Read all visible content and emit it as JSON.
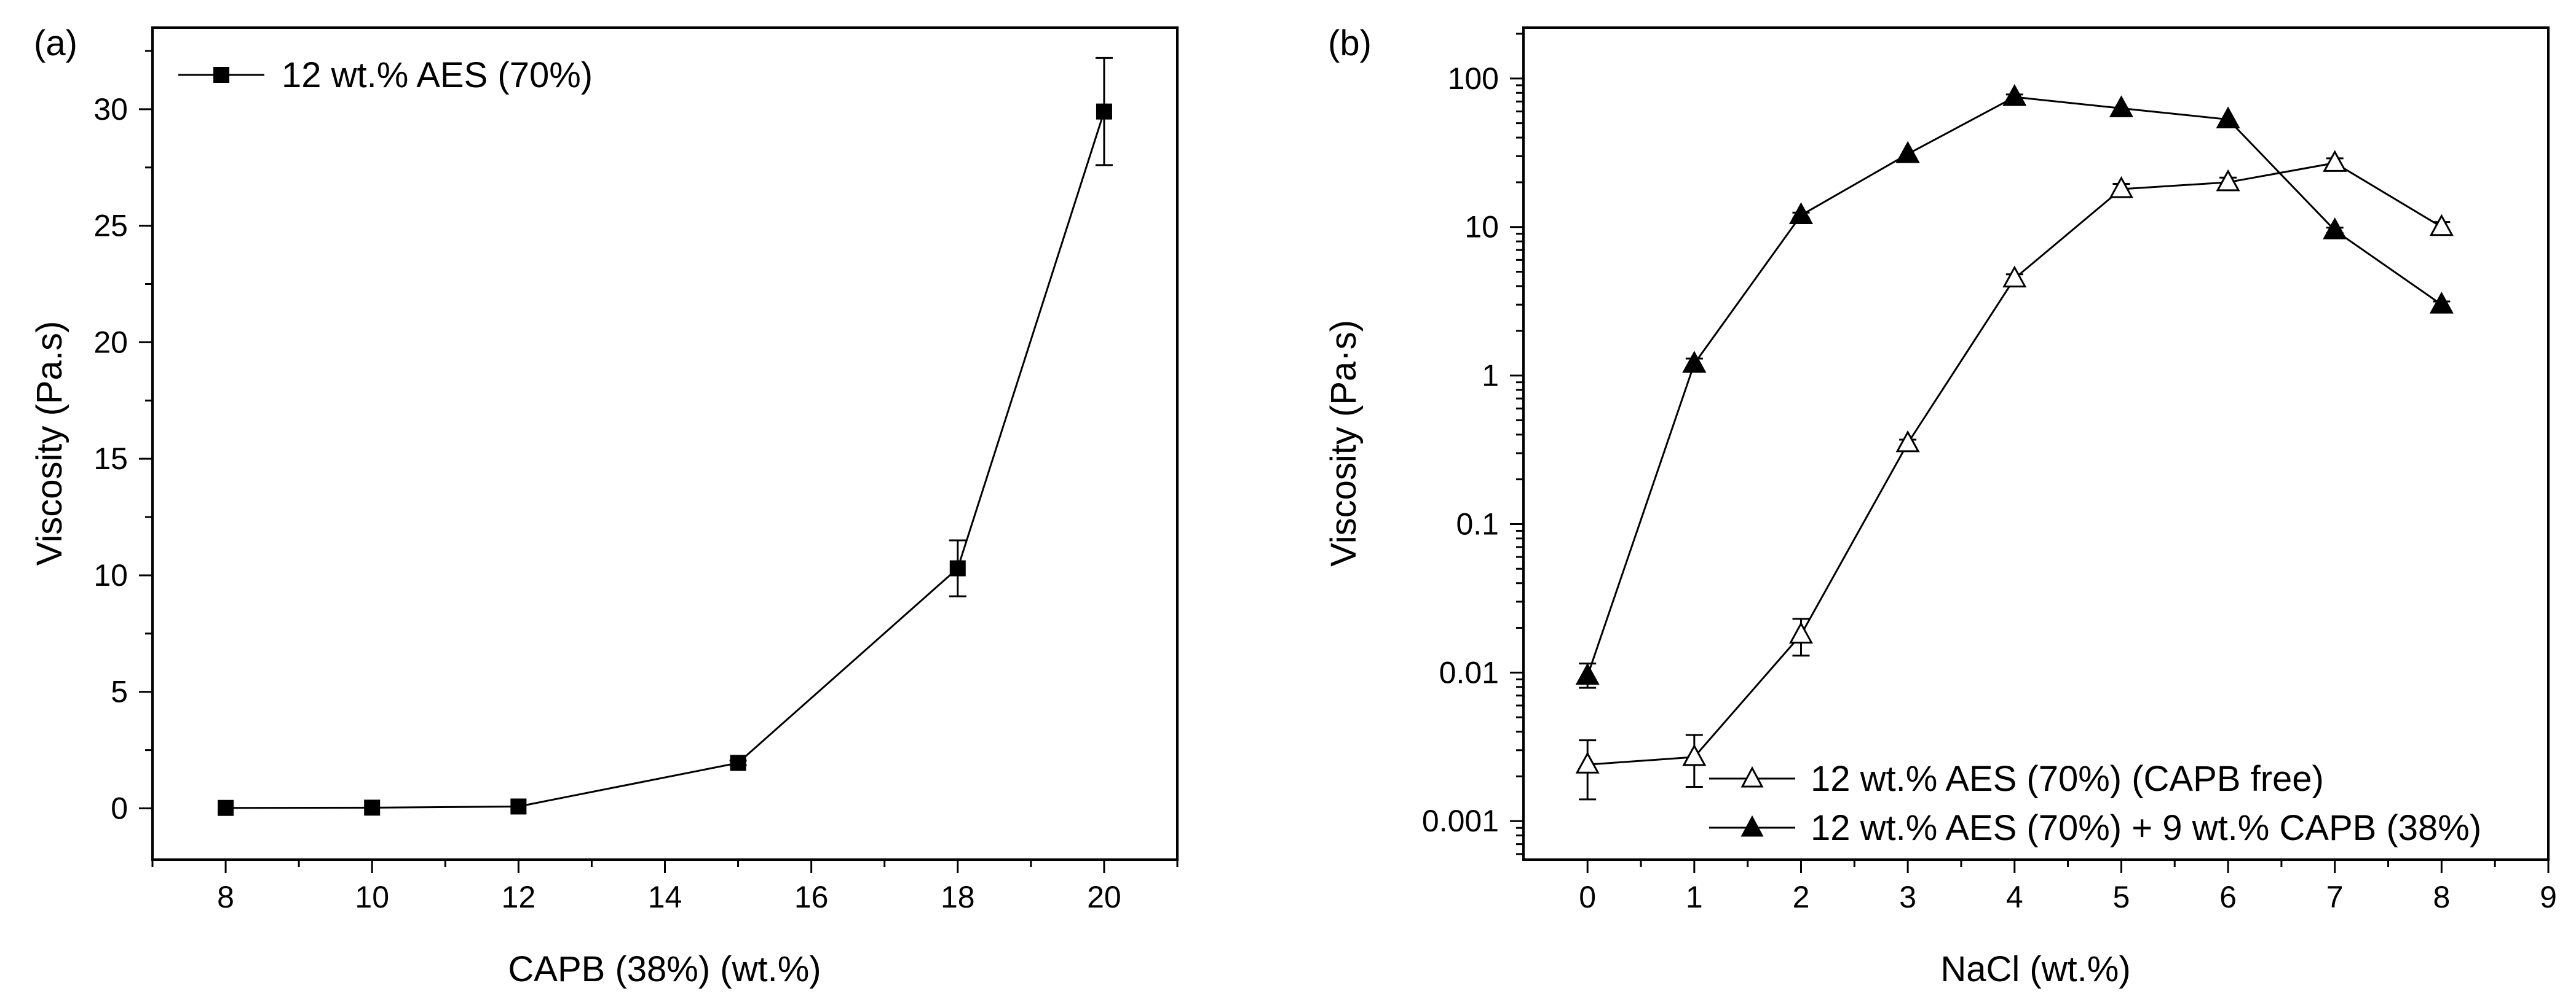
{
  "chart_data": [
    {
      "panel_label": "(a)",
      "type": "line",
      "xlabel": "CAPB (38%) (wt.%)",
      "ylabel": "Viscosity (Pa.s)",
      "xlim": [
        7,
        21
      ],
      "ylim": [
        -2.2,
        33.5
      ],
      "xticks": [
        8,
        10,
        12,
        14,
        16,
        18,
        20
      ],
      "yticks": [
        0,
        5,
        10,
        15,
        20,
        25,
        30
      ],
      "legend_position": "top-left",
      "series": [
        {
          "name": "12 wt.% AES (70%)",
          "marker": "filled-square",
          "x": [
            8,
            10,
            12,
            15,
            18,
            20
          ],
          "y": [
            0.02,
            0.03,
            0.08,
            1.95,
            10.3,
            29.9
          ],
          "err": [
            0,
            0,
            0,
            0.1,
            1.2,
            2.3
          ]
        }
      ]
    },
    {
      "panel_label": "(b)",
      "type": "line",
      "xscale": "linear",
      "yscale": "log",
      "xlabel": "NaCl (wt.%)",
      "ylabel": "Viscosity (Pa·s)",
      "xlim": [
        -0.6,
        9
      ],
      "ylim": [
        0.00055,
        220
      ],
      "xticks": [
        0,
        1,
        2,
        3,
        4,
        5,
        6,
        7,
        8,
        9
      ],
      "yticks": [
        0.001,
        0.01,
        0.1,
        1,
        10,
        100
      ],
      "ytick_labels": [
        "0.001",
        "0.01",
        "0.1",
        "1",
        "10",
        "100"
      ],
      "legend_position": "bottom-right",
      "series": [
        {
          "name": "12 wt.% AES (70%) (CAPB free)",
          "marker": "open-triangle",
          "x": [
            0,
            1,
            2,
            3,
            4,
            5,
            6,
            7,
            8
          ],
          "y": [
            0.0024,
            0.0027,
            0.018,
            0.35,
            4.5,
            18,
            20,
            27,
            10
          ],
          "err_low": [
            0.0014,
            0.0017,
            0.013,
            0.33,
            4.2,
            16.5,
            18.5,
            25,
            9.3
          ],
          "err_high": [
            0.0035,
            0.0038,
            0.023,
            0.37,
            4.8,
            19.5,
            21.5,
            29,
            10.8
          ]
        },
        {
          "name": "12 wt.% AES (70%) + 9 wt.% CAPB (38%)",
          "marker": "filled-triangle",
          "x": [
            0,
            1,
            2,
            3,
            4,
            5,
            6,
            7,
            8
          ],
          "y": [
            0.0095,
            1.2,
            12,
            31,
            75,
            63,
            53,
            9.5,
            3
          ],
          "err_low": [
            0.0079,
            1.1,
            11.5,
            30,
            72,
            61,
            51,
            9.1,
            2.85
          ],
          "err_high": [
            0.0115,
            1.3,
            12.5,
            32,
            78,
            65,
            55,
            9.9,
            3.15
          ]
        }
      ]
    }
  ]
}
